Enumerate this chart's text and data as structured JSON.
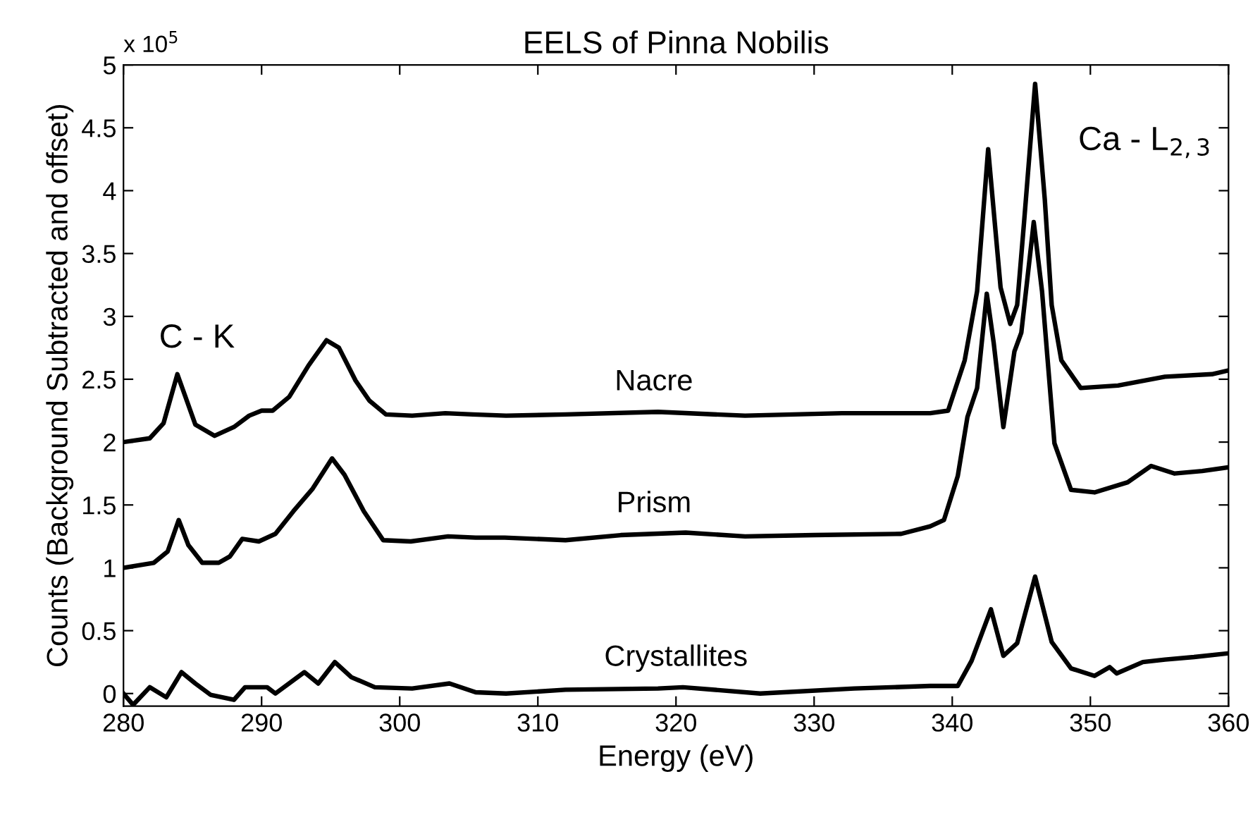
{
  "chart_data": {
    "type": "line",
    "title": "EELS of Pinna Nobilis",
    "xlabel": "Energy (eV)",
    "ylabel": "Counts (Background Subtracted and offset)",
    "xlim": [
      280,
      360
    ],
    "xticks": [
      280,
      290,
      300,
      310,
      320,
      330,
      340,
      350,
      360
    ],
    "ylim": [
      -0.1,
      5
    ],
    "yticks": [
      0,
      0.5,
      1,
      1.5,
      2,
      2.5,
      3,
      3.5,
      4,
      4.5,
      5
    ],
    "grid": false,
    "legend": false,
    "marker": "none",
    "line_style": "solid",
    "annotations": [
      "x 10$^{5}$",
      {
        "text": "C - K",
        "x": 283.9,
        "y": 2.54
      },
      {
        "text": "Ca - L$_{2,3}$",
        "x": 346,
        "y": 4.85
      }
    ],
    "series": [
      {
        "name": "Nacre",
        "color": "#000000",
        "x": [
          280,
          281.9,
          282.9,
          283.9,
          285.2,
          286.6,
          288,
          289.1,
          290,
          290.8,
          292,
          293.4,
          294.7,
          295.6,
          296.8,
          297.8,
          299,
          300.9,
          303.3,
          305.3,
          307.7,
          312,
          318.7,
          325,
          332,
          338.4,
          339.7,
          340.9,
          341.8,
          342.6,
          343.5,
          344.2,
          344.7,
          345.2,
          346,
          346.7,
          347.2,
          347.9,
          349.3,
          352,
          355.4,
          358.8,
          360
        ],
        "values": [
          2.0,
          2.03,
          2.15,
          2.54,
          2.14,
          2.05,
          2.12,
          2.21,
          2.25,
          2.25,
          2.36,
          2.61,
          2.81,
          2.75,
          2.49,
          2.33,
          2.22,
          2.21,
          2.23,
          2.22,
          2.21,
          2.22,
          2.24,
          2.21,
          2.23,
          2.23,
          2.25,
          2.65,
          3.2,
          4.33,
          3.23,
          2.94,
          3.09,
          3.75,
          4.85,
          3.93,
          3.09,
          2.65,
          2.43,
          2.45,
          2.52,
          2.54,
          2.57
        ]
      },
      {
        "name": "Prism",
        "color": "#000000",
        "x": [
          280,
          282.2,
          283.2,
          284,
          284.7,
          285.7,
          286.9,
          287.7,
          288.6,
          289.8,
          291,
          292.3,
          293.7,
          295.1,
          296,
          297.4,
          298.8,
          300.8,
          303.5,
          305.5,
          307.6,
          312,
          316,
          320.7,
          325,
          330,
          336.3,
          338.4,
          339.4,
          340.4,
          341.1,
          341.8,
          342.5,
          343,
          343.7,
          344.5,
          345,
          345.9,
          346.5,
          347.4,
          348.6,
          350.3,
          352.7,
          354.4,
          356.1,
          358.1,
          360
        ],
        "values": [
          1.0,
          1.04,
          1.13,
          1.38,
          1.18,
          1.04,
          1.04,
          1.09,
          1.23,
          1.21,
          1.27,
          1.45,
          1.63,
          1.87,
          1.74,
          1.45,
          1.22,
          1.21,
          1.25,
          1.24,
          1.24,
          1.22,
          1.26,
          1.28,
          1.25,
          1.26,
          1.27,
          1.33,
          1.38,
          1.73,
          2.2,
          2.43,
          3.18,
          2.79,
          2.12,
          2.72,
          2.87,
          3.75,
          3.2,
          1.99,
          1.62,
          1.6,
          1.68,
          1.81,
          1.75,
          1.77,
          1.8
        ]
      },
      {
        "name": "Crystallites",
        "color": "#000000",
        "x": [
          280,
          280.7,
          281.9,
          283.1,
          284.2,
          285.2,
          286.3,
          288,
          288.8,
          290.4,
          291,
          293.1,
          294.1,
          295.3,
          296.5,
          298.2,
          300.9,
          303.6,
          305.5,
          307.7,
          312,
          318.7,
          320.5,
          326.1,
          332.9,
          338.4,
          340.4,
          341.4,
          342.8,
          343.7,
          344.7,
          346,
          347.2,
          348.6,
          350.3,
          351.4,
          351.9,
          353.8,
          355.4,
          357.5,
          360
        ],
        "values": [
          0.0,
          -0.09,
          0.05,
          -0.03,
          0.17,
          0.08,
          -0.01,
          -0.05,
          0.05,
          0.05,
          0.0,
          0.17,
          0.08,
          0.25,
          0.13,
          0.05,
          0.04,
          0.08,
          0.01,
          0.0,
          0.03,
          0.04,
          0.05,
          0.0,
          0.04,
          0.06,
          0.06,
          0.26,
          0.67,
          0.3,
          0.4,
          0.93,
          0.41,
          0.2,
          0.14,
          0.21,
          0.16,
          0.25,
          0.27,
          0.29,
          0.32
        ]
      }
    ]
  }
}
